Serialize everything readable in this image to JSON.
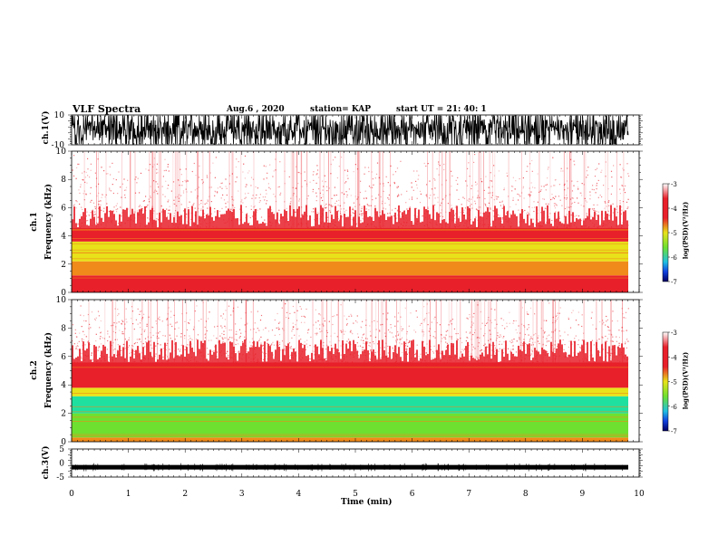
{
  "title": "VLF Spectra",
  "date": "Aug.6  , 2020",
  "station": "station= KAP",
  "start_time": "start  UT =   21: 40: 1",
  "colors": {
    "white": "#ffffff",
    "red": "#e8202a",
    "orange": "#f08a1a",
    "yellow": "#e8e21a",
    "green": "#6ee030",
    "cyan": "#20e0a0",
    "blue": "#1040e0",
    "navy": "#000060"
  },
  "chart_data": [
    {
      "type": "line",
      "name": "ch1-waveform",
      "ylabel": "ch.1(V)",
      "ylim": [
        -10,
        10
      ],
      "yticks": [
        "10",
        "-10"
      ],
      "x_range": [
        0,
        9.83
      ]
    },
    {
      "type": "heatmap",
      "name": "ch1-spectrogram",
      "ylabel_1": "ch.1",
      "ylabel_2": "Frequency  (kHz)",
      "ylim": [
        0,
        10
      ],
      "yticks": [
        "10",
        "8",
        "6",
        "4",
        "2",
        "0"
      ],
      "colorbar": {
        "ticks": [
          "-3",
          "-4",
          "-5",
          "-6",
          "-7"
        ],
        "label": "log(PSD)(V²/Hz)",
        "range": [
          -7,
          -3
        ]
      },
      "bands": [
        {
          "from_khz": 0,
          "to_khz": 1.2,
          "color": "red"
        },
        {
          "from_khz": 1.2,
          "to_khz": 2.2,
          "color": "orange"
        },
        {
          "from_khz": 2.2,
          "to_khz": 3.6,
          "color": "yellow"
        },
        {
          "from_khz": 3.6,
          "to_khz": 4.6,
          "color": "red"
        },
        {
          "from_khz": 4.6,
          "to_khz": 10,
          "color": "white"
        }
      ]
    },
    {
      "type": "heatmap",
      "name": "ch2-spectrogram",
      "ylabel_1": "ch.2",
      "ylabel_2": "Frequency  (kHz)",
      "ylim": [
        0,
        10
      ],
      "yticks": [
        "10",
        "8",
        "6",
        "4",
        "2",
        "0"
      ],
      "colorbar": {
        "ticks": [
          "-3",
          "-4",
          "-5",
          "-6",
          "-7"
        ],
        "label": "log(PSD)(V²/Hz)",
        "range": [
          -7,
          -3
        ]
      },
      "bands": [
        {
          "from_khz": 0,
          "to_khz": 0.3,
          "color": "orange"
        },
        {
          "from_khz": 0.3,
          "to_khz": 2.0,
          "color": "green"
        },
        {
          "from_khz": 2.0,
          "to_khz": 3.2,
          "color": "cyan"
        },
        {
          "from_khz": 3.2,
          "to_khz": 3.8,
          "color": "yellow"
        },
        {
          "from_khz": 3.8,
          "to_khz": 5.6,
          "color": "red"
        },
        {
          "from_khz": 5.6,
          "to_khz": 10,
          "color": "white"
        }
      ]
    },
    {
      "type": "line",
      "name": "ch3-waveform",
      "ylabel": "ch.3(V)",
      "ylim": [
        -5,
        5
      ],
      "yticks": [
        "5",
        "0",
        "-5"
      ],
      "x_range": [
        0,
        9.83
      ],
      "level": -1.5
    }
  ],
  "xaxis": {
    "label": "Time  (min)",
    "range": [
      0,
      10
    ],
    "ticks": [
      "0",
      "1",
      "2",
      "3",
      "4",
      "5",
      "6",
      "7",
      "8",
      "9",
      "10"
    ]
  }
}
